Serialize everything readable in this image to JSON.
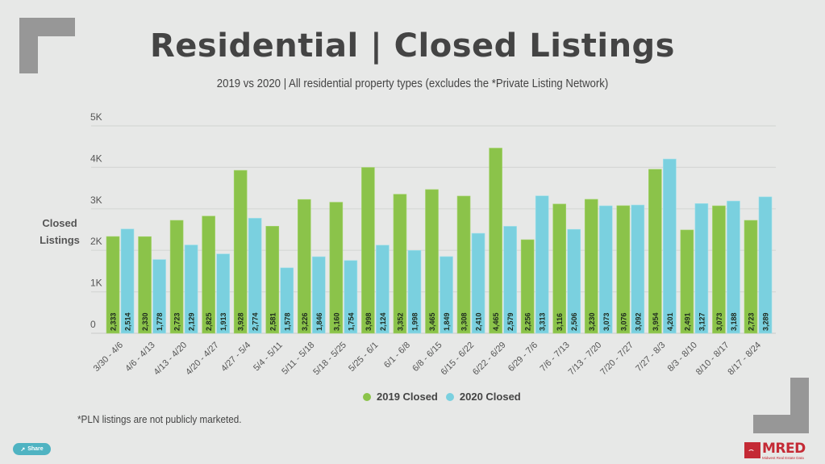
{
  "header": {
    "title": "Residential | Closed Listings",
    "subtitle": "2019 vs 2020 | All residential property types (excludes the *Private Listing Network)"
  },
  "footnote": "*PLN listings are not publicly marketed.",
  "share_button": {
    "label": "Share",
    "icon": "share-icon"
  },
  "logo": {
    "name": "MRED",
    "tagline": "Midwest Real Estate Data"
  },
  "colors": {
    "series_2019": "#8bc34a",
    "series_2020": "#7ad0df",
    "background": "#e7e8e7",
    "grid": "#d4d5d4",
    "text": "#444444",
    "brand": "#c42a35"
  },
  "chart_data": {
    "type": "bar",
    "title": "Residential | Closed Listings",
    "subtitle": "2019 vs 2020 | All residential property types (excludes the *Private Listing Network)",
    "xlabel": "",
    "ylabel": "Closed Listings",
    "ylim": [
      0,
      5000
    ],
    "yticks": [
      0,
      1000,
      2000,
      3000,
      4000,
      5000
    ],
    "ytick_labels": [
      "0",
      "1K",
      "2K",
      "3K",
      "4K",
      "5K"
    ],
    "grid": true,
    "legend_position": "bottom-center",
    "categories": [
      "3/30 - 4/6",
      "4/6 - 4/13",
      "4/13 - 4/20",
      "4/20 - 4/27",
      "4/27 - 5/4",
      "5/4 - 5/11",
      "5/11 - 5/18",
      "5/18 - 5/25",
      "5/25 - 6/1",
      "6/1 - 6/8",
      "6/8 - 6/15",
      "6/15 - 6/22",
      "6/22 - 6/29",
      "6/29 - 7/6",
      "7/6 - 7/13",
      "7/13 - 7/20",
      "7/20 - 7/27",
      "7/27 - 8/3",
      "8/3 - 8/10",
      "8/10 - 8/17",
      "8/17 - 8/24"
    ],
    "series": [
      {
        "name": "2019 Closed",
        "color": "#8bc34a",
        "values": [
          2333,
          2330,
          2723,
          2825,
          3928,
          2581,
          3226,
          3160,
          3998,
          3352,
          3465,
          3308,
          4465,
          2256,
          3116,
          3230,
          3076,
          3954,
          2491,
          3073,
          2723
        ]
      },
      {
        "name": "2020 Closed",
        "color": "#7ad0df",
        "values": [
          2514,
          1778,
          2129,
          1913,
          2774,
          1578,
          1846,
          1754,
          2124,
          1998,
          1849,
          2410,
          2579,
          3313,
          2506,
          3073,
          3092,
          4201,
          3127,
          3188,
          3289
        ]
      }
    ]
  }
}
